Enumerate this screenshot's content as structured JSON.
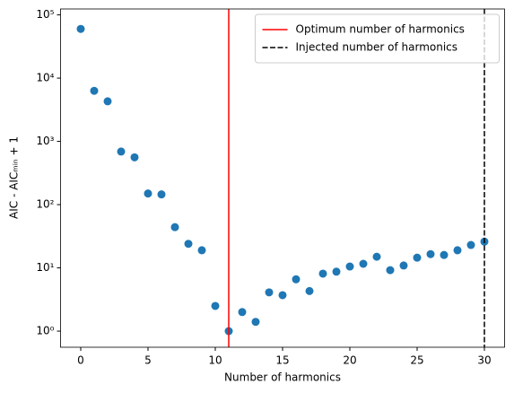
{
  "chart_data": {
    "type": "scatter",
    "xlabel": "Number of harmonics",
    "ylabel": "AIC - AICₘᵢₙ + 1",
    "log_y": true,
    "legend": "upper right",
    "x": [
      0,
      1,
      2,
      3,
      4,
      5,
      6,
      7,
      8,
      9,
      10,
      11,
      12,
      13,
      14,
      15,
      16,
      17,
      18,
      19,
      20,
      21,
      22,
      23,
      24,
      25,
      26,
      27,
      28,
      29,
      30
    ],
    "values": [
      60000,
      6300,
      4300,
      690,
      560,
      150,
      145,
      44,
      24,
      19,
      2.5,
      1.0,
      2.0,
      1.4,
      4.1,
      3.7,
      6.6,
      4.3,
      8.1,
      8.7,
      10.5,
      11.6,
      15,
      9.2,
      10.9,
      14.5,
      16.5,
      16,
      19,
      23,
      26
    ],
    "color": "#1f77b4",
    "vlines": [
      {
        "name": "Optimum number of harmonics",
        "x": 11,
        "color": "#ff0000",
        "dashed": false
      },
      {
        "name": "Injected number of harmonics",
        "x": 30,
        "color": "#000000",
        "dashed": true
      }
    ],
    "xlim": [
      -1.5,
      31.5
    ],
    "xticks": [
      0,
      5,
      10,
      15,
      20,
      25,
      30
    ],
    "ylim": [
      0.556,
      124000
    ],
    "yticks": [
      {
        "value": 1,
        "label": "10⁰"
      },
      {
        "value": 10,
        "label": "10¹"
      },
      {
        "value": 100,
        "label": "10²"
      },
      {
        "value": 1000,
        "label": "10³"
      },
      {
        "value": 10000,
        "label": "10⁴"
      },
      {
        "value": 100000,
        "label": "10⁵"
      }
    ]
  }
}
